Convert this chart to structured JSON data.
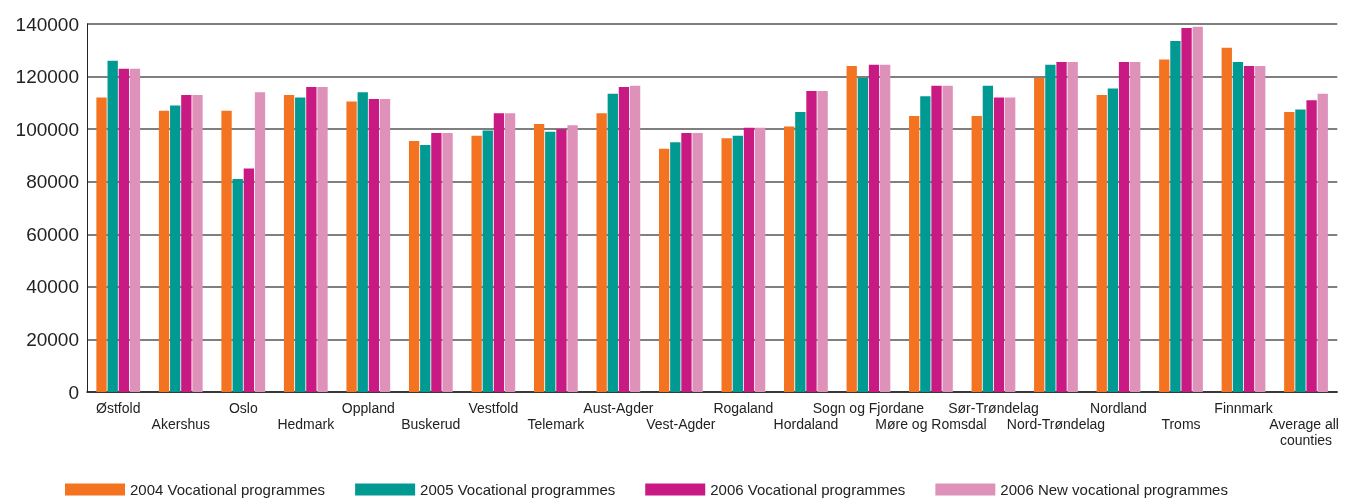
{
  "chart_data": {
    "type": "bar",
    "categories": [
      "Østfold",
      "Akershus",
      "Oslo",
      "Hedmark",
      "Oppland",
      "Buskerud",
      "Vestfold",
      "Telemark",
      "Aust-Agder",
      "Vest-Agder",
      "Rogaland",
      "Hordaland",
      "Sogn og Fjordane",
      "Møre og Romsdal",
      "Sør-Trøndelag",
      "Nord-Trøndelag",
      "Nordland",
      "Troms",
      "Finnmark",
      "Average all counties"
    ],
    "series": [
      {
        "name": "2004 Vocational programmes",
        "color": "#f37321",
        "values": [
          112000,
          107000,
          107000,
          113000,
          110500,
          95500,
          97500,
          102000,
          106000,
          92500,
          96500,
          101000,
          124000,
          105000,
          105000,
          119500,
          113000,
          126500,
          131000,
          106500
        ]
      },
      {
        "name": "2005 Vocational programmes",
        "color": "#009a93",
        "values": [
          126000,
          109000,
          81000,
          112000,
          114000,
          94000,
          99500,
          99000,
          113500,
          95000,
          97500,
          106500,
          119500,
          112500,
          116500,
          124500,
          115500,
          133500,
          125500,
          107500
        ]
      },
      {
        "name": "2006 Vocational programmes",
        "color": "#c91983",
        "values": [
          123000,
          113000,
          85000,
          116000,
          111500,
          98500,
          106000,
          100000,
          116000,
          98500,
          100500,
          114500,
          124500,
          116500,
          112000,
          125500,
          125500,
          138500,
          124000,
          111000
        ]
      },
      {
        "name": "2006 New vocational programmes",
        "color": "#de92b9",
        "values": [
          123000,
          113000,
          114000,
          116000,
          111500,
          98500,
          106000,
          101500,
          116500,
          98500,
          100500,
          114500,
          124500,
          116500,
          112000,
          125500,
          125500,
          139000,
          124000,
          113500
        ]
      }
    ],
    "ylim": [
      0,
      140000
    ],
    "yticks": [
      0,
      20000,
      40000,
      60000,
      80000,
      100000,
      120000,
      140000
    ],
    "grid": "y",
    "legend": "bottom"
  }
}
